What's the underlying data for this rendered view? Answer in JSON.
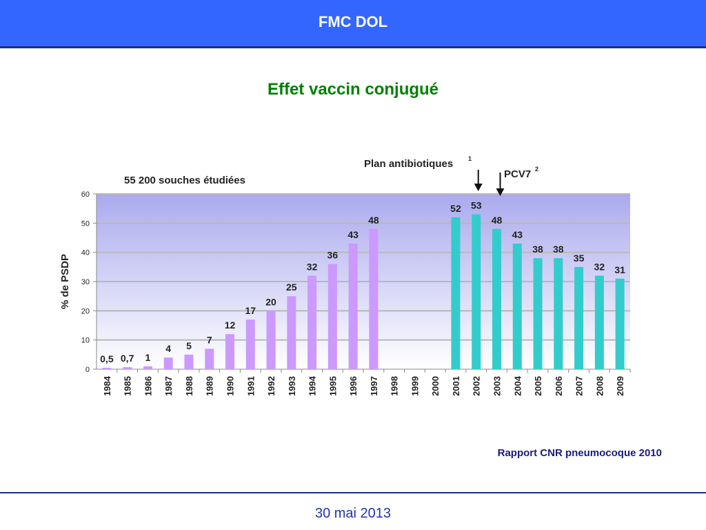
{
  "header": {
    "title": "FMC DOL"
  },
  "slide": {
    "title": "Effet vaccin conjugué"
  },
  "footer": {
    "date": "30 mai 2013",
    "source": "Rapport CNR pneumocoque 2010"
  },
  "colors": {
    "bar_before": "#cc99ff",
    "bar_after": "#33cccc",
    "plot_top": "#aaaaee",
    "plot_bottom": "#ffffff"
  },
  "chart_data": {
    "type": "bar",
    "title": "55 200 souches étudiées",
    "ylabel": "% de PSDP",
    "ylim": [
      0,
      60
    ],
    "yticks": [
      "0",
      "10",
      "20",
      "30",
      "40",
      "50",
      "60"
    ],
    "categories": [
      "1984",
      "1985",
      "1986",
      "1987",
      "1988",
      "1989",
      "1990",
      "1991",
      "1992",
      "1993",
      "1994",
      "1995",
      "1996",
      "1997",
      "1998",
      "1999",
      "2000",
      "2001",
      "2002",
      "2003",
      "2004",
      "2005",
      "2006",
      "2007",
      "2008",
      "2009"
    ],
    "values": [
      0.5,
      0.7,
      1,
      4,
      5,
      7,
      12,
      17,
      20,
      25,
      32,
      36,
      43,
      48,
      null,
      null,
      null,
      52,
      53,
      48,
      43,
      38,
      38,
      35,
      32,
      31
    ],
    "value_labels": [
      "0,5",
      "0,7",
      "1",
      "4",
      "5",
      "7",
      "12",
      "17",
      "20",
      "25",
      "32",
      "36",
      "43",
      "48",
      "",
      "",
      "",
      "52",
      "53",
      "48",
      "43",
      "38",
      "38",
      "35",
      "32",
      "31"
    ],
    "grid": true,
    "annotations": [
      {
        "text": "Plan antibiotiques",
        "superscript": "1",
        "category": "2002"
      },
      {
        "text": "PCV7",
        "superscript": "2",
        "category": "2003"
      }
    ]
  }
}
